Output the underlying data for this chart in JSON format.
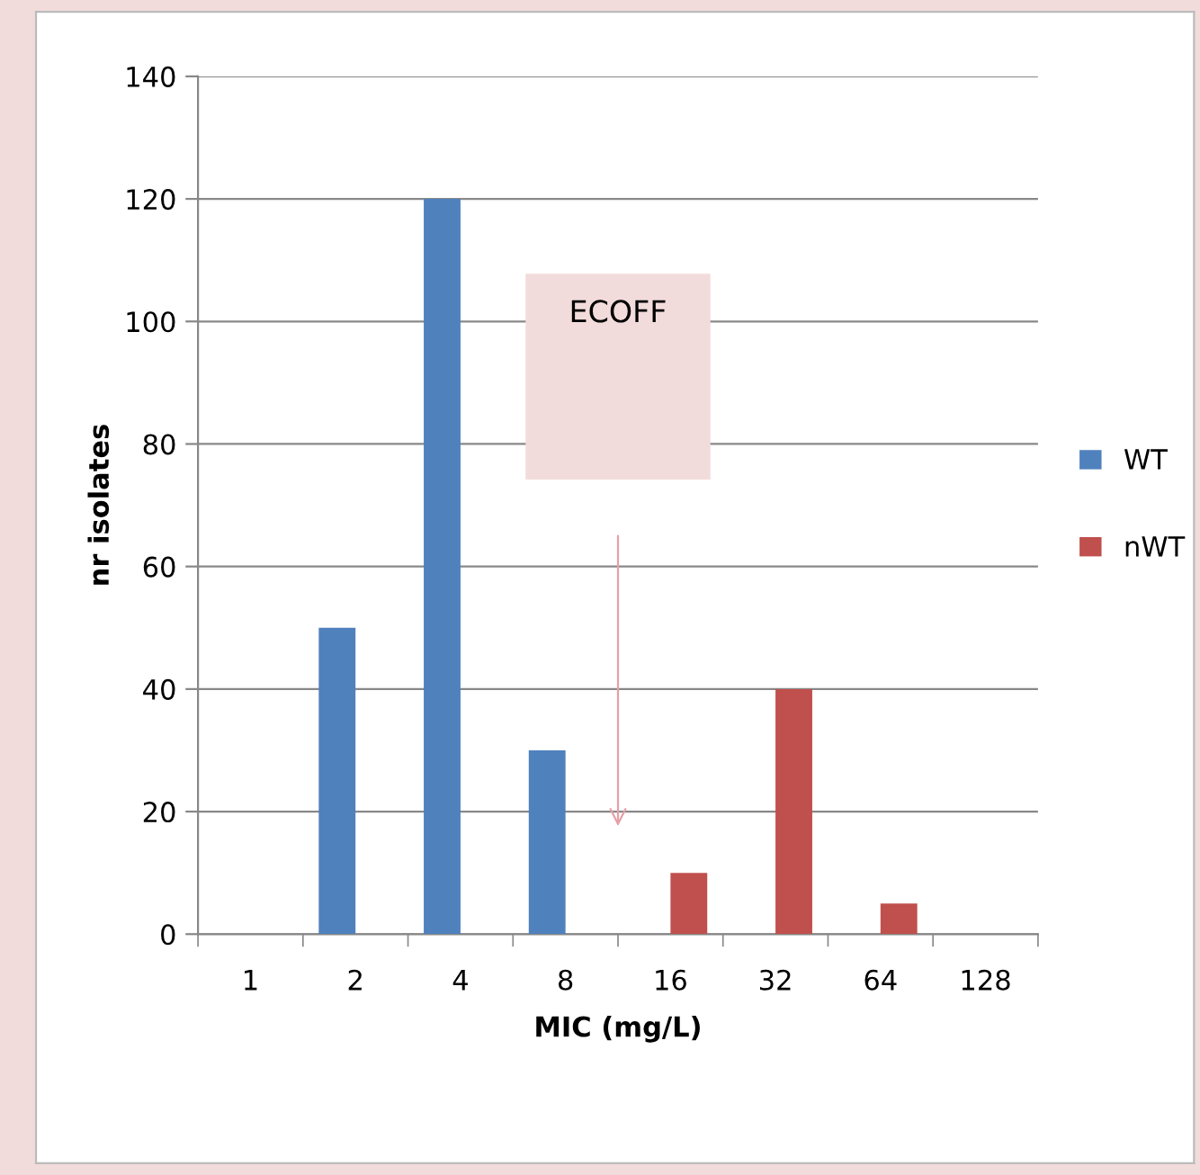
{
  "chart_data": {
    "type": "bar",
    "xlabel": "MIC (mg/L)",
    "ylabel": "nr isolates",
    "categories": [
      "1",
      "2",
      "4",
      "8",
      "16",
      "32",
      "64",
      "128"
    ],
    "series": [
      {
        "name": "WT",
        "color": "#4f81bd",
        "values": [
          null,
          50,
          120,
          30,
          null,
          null,
          null,
          null
        ]
      },
      {
        "name": "nWT",
        "color": "#c0504d",
        "values": [
          null,
          null,
          null,
          null,
          10,
          40,
          5,
          null
        ]
      }
    ],
    "ylim": [
      0,
      140
    ],
    "yticks": [
      0,
      20,
      40,
      60,
      80,
      100,
      120,
      140
    ],
    "grid": "y",
    "legend": "right",
    "annotations": [
      "ECOFF"
    ]
  }
}
